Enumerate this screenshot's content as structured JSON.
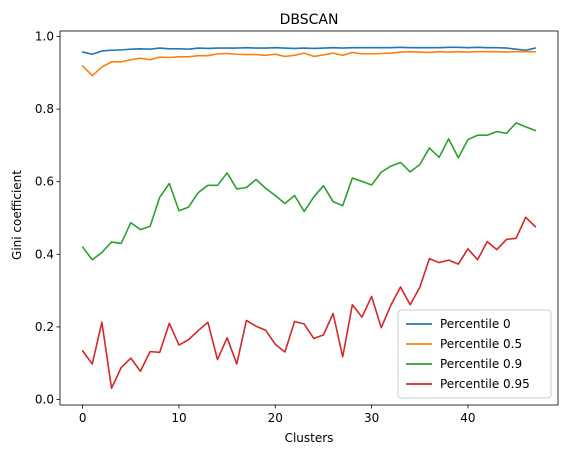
{
  "chart_data": {
    "type": "line",
    "title": "DBSCAN",
    "xlabel": "Clusters",
    "ylabel": "Gini coefficient",
    "xlim": [
      -2.35,
      49.35
    ],
    "ylim": [
      -0.015,
      1.015
    ],
    "xticks": [
      0,
      10,
      20,
      30,
      40
    ],
    "yticks": [
      0.0,
      0.2,
      0.4,
      0.6,
      0.8,
      1.0
    ],
    "ytick_labels": [
      "0.0",
      "0.2",
      "0.4",
      "0.6",
      "0.8",
      "1.0"
    ],
    "grid": false,
    "legend_position": "lower-right",
    "x": [
      0,
      1,
      2,
      3,
      4,
      5,
      6,
      7,
      8,
      9,
      10,
      11,
      12,
      13,
      14,
      15,
      16,
      17,
      18,
      19,
      20,
      21,
      22,
      23,
      24,
      25,
      26,
      27,
      28,
      29,
      30,
      31,
      32,
      33,
      34,
      35,
      36,
      37,
      38,
      39,
      40,
      41,
      42,
      43,
      44,
      45,
      46,
      47
    ],
    "series": [
      {
        "name": "Percentile 0",
        "color": "#1f77b4",
        "values": [
          0.957,
          0.951,
          0.96,
          0.962,
          0.963,
          0.965,
          0.966,
          0.965,
          0.968,
          0.966,
          0.966,
          0.965,
          0.968,
          0.967,
          0.968,
          0.968,
          0.968,
          0.969,
          0.968,
          0.968,
          0.969,
          0.968,
          0.967,
          0.968,
          0.967,
          0.968,
          0.969,
          0.968,
          0.969,
          0.969,
          0.969,
          0.969,
          0.969,
          0.97,
          0.969,
          0.969,
          0.969,
          0.969,
          0.97,
          0.97,
          0.969,
          0.97,
          0.969,
          0.969,
          0.968,
          0.965,
          0.962,
          0.968
        ]
      },
      {
        "name": "Percentile 0.5",
        "color": "#ff7f0e",
        "values": [
          0.919,
          0.892,
          0.916,
          0.93,
          0.93,
          0.936,
          0.94,
          0.936,
          0.943,
          0.942,
          0.944,
          0.944,
          0.947,
          0.947,
          0.952,
          0.953,
          0.951,
          0.95,
          0.95,
          0.948,
          0.951,
          0.945,
          0.948,
          0.954,
          0.945,
          0.949,
          0.954,
          0.948,
          0.956,
          0.952,
          0.952,
          0.953,
          0.954,
          0.957,
          0.958,
          0.957,
          0.956,
          0.958,
          0.957,
          0.958,
          0.957,
          0.958,
          0.958,
          0.958,
          0.957,
          0.958,
          0.958,
          0.958
        ]
      },
      {
        "name": "Percentile 0.9",
        "color": "#2ca02c",
        "values": [
          0.42,
          0.385,
          0.405,
          0.434,
          0.43,
          0.487,
          0.468,
          0.477,
          0.557,
          0.595,
          0.52,
          0.53,
          0.57,
          0.59,
          0.59,
          0.624,
          0.58,
          0.584,
          0.606,
          0.582,
          0.562,
          0.54,
          0.562,
          0.518,
          0.558,
          0.589,
          0.545,
          0.534,
          0.61,
          0.601,
          0.591,
          0.626,
          0.643,
          0.653,
          0.627,
          0.647,
          0.693,
          0.667,
          0.718,
          0.666,
          0.716,
          0.728,
          0.728,
          0.738,
          0.733,
          0.762,
          0.751,
          0.741
        ]
      },
      {
        "name": "Percentile 0.95",
        "color": "#d62728",
        "values": [
          0.134,
          0.098,
          0.213,
          0.031,
          0.088,
          0.114,
          0.078,
          0.132,
          0.13,
          0.21,
          0.15,
          0.165,
          0.19,
          0.213,
          0.11,
          0.17,
          0.098,
          0.218,
          0.202,
          0.191,
          0.152,
          0.131,
          0.215,
          0.208,
          0.168,
          0.178,
          0.237,
          0.118,
          0.261,
          0.227,
          0.284,
          0.198,
          0.26,
          0.31,
          0.261,
          0.309,
          0.388,
          0.377,
          0.384,
          0.373,
          0.415,
          0.385,
          0.435,
          0.413,
          0.441,
          0.444,
          0.502,
          0.476
        ]
      }
    ]
  }
}
